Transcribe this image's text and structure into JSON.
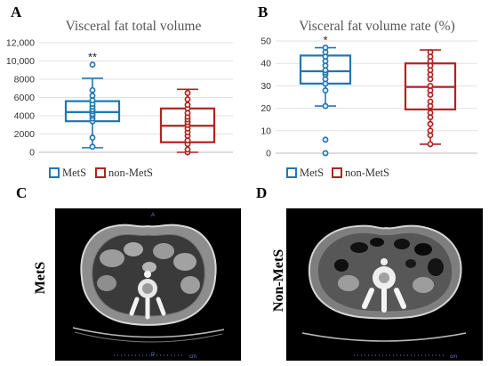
{
  "colors": {
    "mets": "#1f77b4",
    "nonmets": "#b22222",
    "axis": "#999999",
    "ct_bg": "#000000"
  },
  "panels": {
    "a": {
      "letter": "A"
    },
    "b": {
      "letter": "B"
    },
    "c": {
      "letter": "C",
      "label": "MetS",
      "marker_top": "A",
      "marker_bottom": "P",
      "scale_unit": "cm"
    },
    "d": {
      "letter": "D",
      "label": "Non-MetS",
      "scale_unit": "cm"
    }
  },
  "chart_data": [
    {
      "type": "box",
      "title": "Visceral fat total volume",
      "xlabel": "",
      "ylabel": "",
      "ylim": [
        0,
        12000
      ],
      "yticks": [
        "0",
        "2000",
        "4000",
        "6000",
        "8000",
        "10,000",
        "12,000"
      ],
      "grid": true,
      "legend": {
        "position": "bottom",
        "entries": [
          "MetS",
          "non-MetS"
        ]
      },
      "annotation": "**",
      "series": [
        {
          "name": "MetS",
          "color": "#1f77b4",
          "whisker_low": 500,
          "q1": 3400,
          "median": 4400,
          "q3": 5600,
          "whisker_high": 8100,
          "points": [
            600,
            1600,
            3400,
            3700,
            4000,
            4200,
            4500,
            4700,
            5000,
            5300,
            5700,
            6200,
            6800,
            9600
          ]
        },
        {
          "name": "non-MetS",
          "color": "#b22222",
          "whisker_low": 0,
          "q1": 1100,
          "median": 2900,
          "q3": 4800,
          "whisker_high": 6900,
          "points": [
            0,
            300,
            900,
            1300,
            1800,
            2200,
            2600,
            3000,
            3300,
            3600,
            3900,
            4300,
            4800,
            5200,
            5800,
            6500
          ]
        }
      ]
    },
    {
      "type": "box",
      "title": "Visceral fat volume rate (%)",
      "xlabel": "",
      "ylabel": "",
      "ylim": [
        0,
        50
      ],
      "yticks": [
        "0",
        "10",
        "20",
        "30",
        "40",
        "50"
      ],
      "grid": true,
      "legend": {
        "position": "bottom",
        "entries": [
          "MetS",
          "non-MetS"
        ]
      },
      "annotation": "*",
      "series": [
        {
          "name": "MetS",
          "color": "#1f77b4",
          "whisker_low": 21,
          "q1": 31,
          "median": 36.5,
          "q3": 43.5,
          "whisker_high": 47,
          "points": [
            0,
            6,
            21,
            28,
            31,
            33,
            35,
            36,
            37,
            39,
            41,
            43,
            45,
            47
          ]
        },
        {
          "name": "non-MetS",
          "color": "#b22222",
          "whisker_low": 4,
          "q1": 19.5,
          "median": 29.5,
          "q3": 40,
          "whisker_high": 46,
          "points": [
            4,
            8,
            10,
            13,
            16,
            18,
            21,
            23,
            26,
            28,
            30,
            33,
            35,
            37,
            39,
            41,
            43,
            45
          ]
        }
      ]
    }
  ]
}
